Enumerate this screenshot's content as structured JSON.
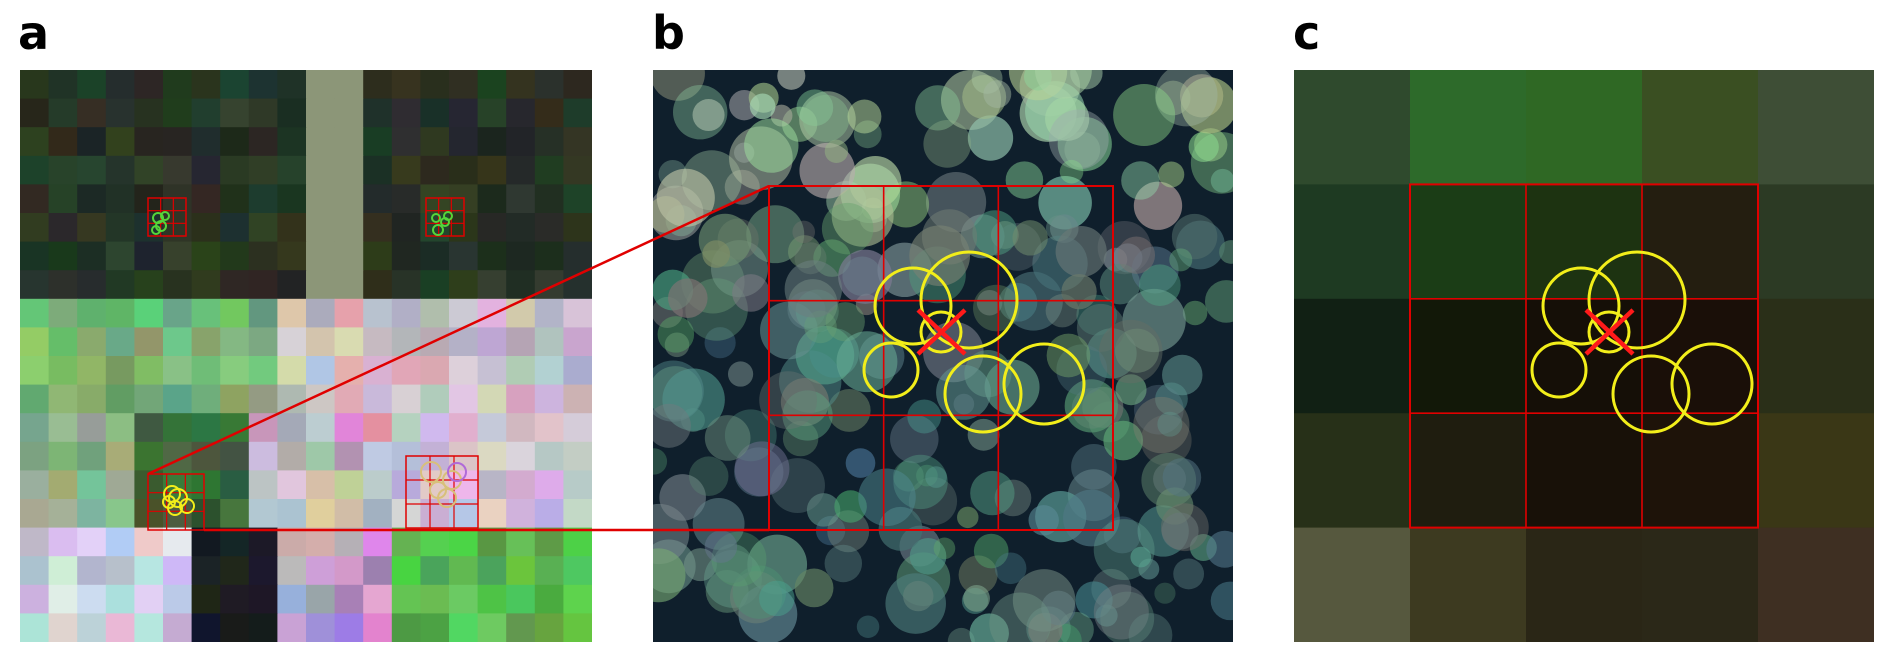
{
  "panels": [
    {
      "label": "a"
    },
    {
      "label": "b"
    },
    {
      "label": "c"
    }
  ],
  "colors": {
    "grid_outline": "#e00000",
    "crown_highlight": "#f2ee1a",
    "crown_group_green": "#55d63a",
    "crown_group_tan": "#d8c07a",
    "crown_group_purple": "#b06ad8",
    "target_marker": "#ff1a1a"
  },
  "icons": {
    "target_marker": "x-cross-icon",
    "tree_crown": "circle-icon"
  }
}
